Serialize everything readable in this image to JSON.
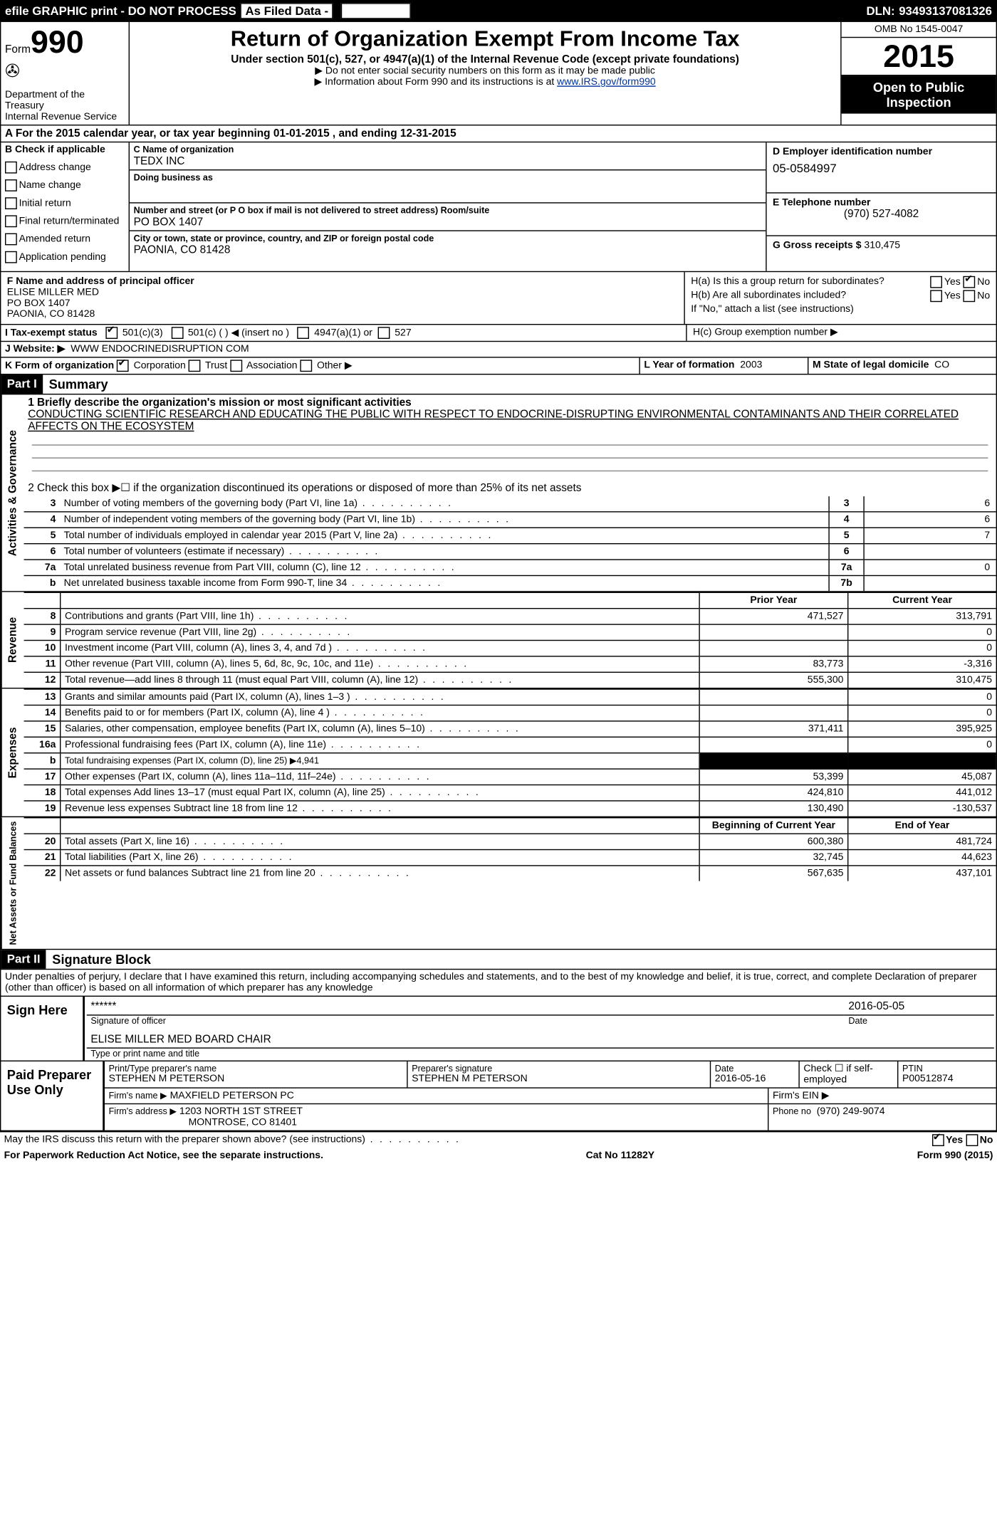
{
  "topbar": {
    "efile": "efile GRAPHIC print - DO NOT PROCESS",
    "asfiled": "As Filed Data -",
    "dln_label": "DLN:",
    "dln": "93493137081326"
  },
  "header": {
    "form_label": "Form",
    "form_num": "990",
    "dept": "Department of the Treasury",
    "irs": "Internal Revenue Service",
    "title": "Return of Organization Exempt From Income Tax",
    "subtitle": "Under section 501(c), 527, or 4947(a)(1) of the Internal Revenue Code (except private foundations)",
    "note1": "▶ Do not enter social security numbers on this form as it may be made public",
    "note2_pre": "▶ Information about Form 990 and its instructions is at ",
    "note2_link": "www.IRS.gov/form990",
    "omb": "OMB No 1545-0047",
    "year": "2015",
    "open": "Open to Public Inspection"
  },
  "row_a": "A  For the 2015 calendar year, or tax year beginning 01-01-2015    , and ending 12-31-2015",
  "b": {
    "label": "B  Check if applicable",
    "items": [
      "Address change",
      "Name change",
      "Initial return",
      "Final return/terminated",
      "Amended return",
      "Application pending"
    ]
  },
  "c": {
    "name_label": "C Name of organization",
    "name": "TEDX INC",
    "dba_label": "Doing business as",
    "dba": "",
    "addr_label": "Number and street (or P O  box if mail is not delivered to street address)   Room/suite",
    "addr": "PO BOX 1407",
    "city_label": "City or town, state or province, country, and ZIP or foreign postal code",
    "city": "PAONIA, CO  81428"
  },
  "d": {
    "label": "D Employer identification number",
    "val": "05-0584997"
  },
  "e": {
    "label": "E Telephone number",
    "val": "(970) 527-4082"
  },
  "g": {
    "label": "G Gross receipts $",
    "val": "310,475"
  },
  "f": {
    "label": "F   Name and address of principal officer",
    "l1": "ELISE MILLER MED",
    "l2": "PO BOX 1407",
    "l3": "PAONIA, CO  81428"
  },
  "h": {
    "a": "H(a)  Is this a group return for subordinates?",
    "b": "H(b)  Are all subordinates included?",
    "note": "If \"No,\" attach a list  (see instructions)",
    "c": "H(c)  Group exemption number ▶"
  },
  "i": {
    "label": "I   Tax-exempt status",
    "o1": "501(c)(3)",
    "o2": "501(c) (  ) ◀ (insert no )",
    "o3": "4947(a)(1) or",
    "o4": "527"
  },
  "j": {
    "label": "J   Website: ▶",
    "val": "WWW ENDOCRINEDISRUPTION COM"
  },
  "k": {
    "label": "K Form of organization",
    "corp": "Corporation",
    "trust": "Trust",
    "assoc": "Association",
    "other": "Other ▶"
  },
  "l": {
    "label": "L Year of formation",
    "val": "2003"
  },
  "m": {
    "label": "M State of legal domicile",
    "val": "CO"
  },
  "part1": {
    "hdr": "Part I",
    "title": "Summary"
  },
  "mission": {
    "q": "1 Briefly describe the organization's mission or most significant activities",
    "text": "CONDUCTING SCIENTIFIC RESEARCH AND EDUCATING THE PUBLIC WITH RESPECT TO ENDOCRINE-DISRUPTING ENVIRONMENTAL CONTAMINANTS AND THEIR CORRELATED AFFECTS ON THE ECOSYSTEM"
  },
  "gov": {
    "side": "Activities & Governance",
    "q2": "2  Check this box ▶☐ if the organization discontinued its operations or disposed of more than 25% of its net assets",
    "rows": [
      {
        "n": "3",
        "t": "Number of voting members of the governing body (Part VI, line 1a)",
        "b": "3",
        "v": "6"
      },
      {
        "n": "4",
        "t": "Number of independent voting members of the governing body (Part VI, line 1b)",
        "b": "4",
        "v": "6"
      },
      {
        "n": "5",
        "t": "Total number of individuals employed in calendar year 2015 (Part V, line 2a)",
        "b": "5",
        "v": "7"
      },
      {
        "n": "6",
        "t": "Total number of volunteers (estimate if necessary)",
        "b": "6",
        "v": ""
      },
      {
        "n": "7a",
        "t": "Total unrelated business revenue from Part VIII, column (C), line 12",
        "b": "7a",
        "v": "0"
      },
      {
        "n": "b",
        "t": "Net unrelated business taxable income from Form 990-T, line 34",
        "b": "7b",
        "v": ""
      }
    ]
  },
  "revenue": {
    "side": "Revenue",
    "h1": "Prior Year",
    "h2": "Current Year",
    "rows": [
      {
        "n": "8",
        "t": "Contributions and grants (Part VIII, line 1h)",
        "p": "471,527",
        "c": "313,791"
      },
      {
        "n": "9",
        "t": "Program service revenue (Part VIII, line 2g)",
        "p": "",
        "c": "0"
      },
      {
        "n": "10",
        "t": "Investment income (Part VIII, column (A), lines 3, 4, and 7d )",
        "p": "",
        "c": "0"
      },
      {
        "n": "11",
        "t": "Other revenue (Part VIII, column (A), lines 5, 6d, 8c, 9c, 10c, and 11e)",
        "p": "83,773",
        "c": "-3,316"
      },
      {
        "n": "12",
        "t": "Total revenue—add lines 8 through 11 (must equal Part VIII, column (A), line 12)",
        "p": "555,300",
        "c": "310,475"
      }
    ]
  },
  "expenses": {
    "side": "Expenses",
    "rows": [
      {
        "n": "13",
        "t": "Grants and similar amounts paid (Part IX, column (A), lines 1–3 )",
        "p": "",
        "c": "0"
      },
      {
        "n": "14",
        "t": "Benefits paid to or for members (Part IX, column (A), line 4 )",
        "p": "",
        "c": "0"
      },
      {
        "n": "15",
        "t": "Salaries, other compensation, employee benefits (Part IX, column (A), lines 5–10)",
        "p": "371,411",
        "c": "395,925"
      },
      {
        "n": "16a",
        "t": "Professional fundraising fees (Part IX, column (A), line 11e)",
        "p": "",
        "c": "0"
      },
      {
        "n": "b",
        "t": "Total fundraising expenses (Part IX, column (D), line 25) ▶4,941",
        "p": "BLACK",
        "c": "BLACK"
      },
      {
        "n": "17",
        "t": "Other expenses (Part IX, column (A), lines 11a–11d, 11f–24e)",
        "p": "53,399",
        "c": "45,087"
      },
      {
        "n": "18",
        "t": "Total expenses  Add lines 13–17 (must equal Part IX, column (A), line 25)",
        "p": "424,810",
        "c": "441,012"
      },
      {
        "n": "19",
        "t": "Revenue less expenses  Subtract line 18 from line 12",
        "p": "130,490",
        "c": "-130,537"
      }
    ]
  },
  "netassets": {
    "side": "Net Assets or Fund Balances",
    "h1": "Beginning of Current Year",
    "h2": "End of Year",
    "rows": [
      {
        "n": "20",
        "t": "Total assets (Part X, line 16)",
        "p": "600,380",
        "c": "481,724"
      },
      {
        "n": "21",
        "t": "Total liabilities (Part X, line 26)",
        "p": "32,745",
        "c": "44,623"
      },
      {
        "n": "22",
        "t": "Net assets or fund balances  Subtract line 21 from line 20",
        "p": "567,635",
        "c": "437,101"
      }
    ]
  },
  "part2": {
    "hdr": "Part II",
    "title": "Signature Block"
  },
  "perjury": "Under penalties of perjury, I declare that I have examined this return, including accompanying schedules and statements, and to the best of my knowledge and belief, it is true, correct, and complete  Declaration of preparer (other than officer) is based on all information of which preparer has any knowledge",
  "sign": {
    "here": "Sign Here",
    "stars": "******",
    "sig_of": "Signature of officer",
    "date": "2016-05-05",
    "date_lbl": "Date",
    "name": "ELISE MILLER MED BOARD CHAIR",
    "name_lbl": "Type or print name and title"
  },
  "paid": {
    "title": "Paid Preparer Use Only",
    "prep_name_lbl": "Print/Type preparer's name",
    "prep_name": "STEPHEN M PETERSON",
    "prep_sig_lbl": "Preparer's signature",
    "prep_sig": "STEPHEN M PETERSON",
    "date_lbl": "Date",
    "date": "2016-05-16",
    "check_lbl": "Check ☐ if self-employed",
    "ptin_lbl": "PTIN",
    "ptin": "P00512874",
    "firm_name_lbl": "Firm's name    ▶",
    "firm_name": "MAXFIELD PETERSON PC",
    "firm_ein_lbl": "Firm's EIN ▶",
    "firm_addr_lbl": "Firm's address ▶",
    "firm_addr1": "1203 NORTH 1ST STREET",
    "firm_addr2": "MONTROSE, CO  81401",
    "phone_lbl": "Phone no",
    "phone": "(970) 249-9074"
  },
  "may_discuss": "May the IRS discuss this return with the preparer shown above? (see instructions)",
  "footer": {
    "l": "For Paperwork Reduction Act Notice, see the separate instructions.",
    "m": "Cat No  11282Y",
    "r": "Form 990 (2015)"
  },
  "yes": "Yes",
  "no": "No"
}
